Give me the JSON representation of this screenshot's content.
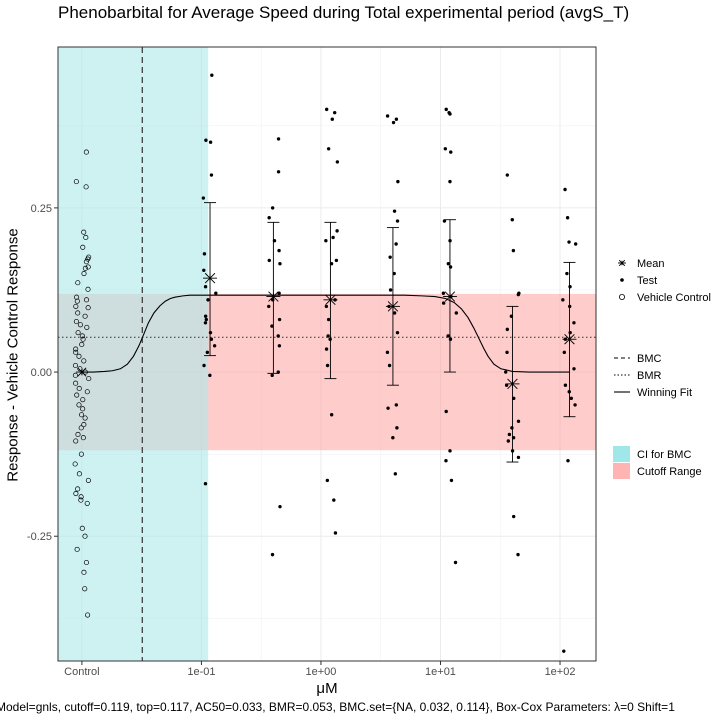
{
  "chart_data": {
    "type": "scatter",
    "title": "Phenobarbital for Average Speed during Total experimental period (avgS_T)",
    "xlabel": "μM",
    "ylabel": "Response - Vehicle Control Response",
    "caption": "Model=gnls, cutoff=0.119, top=0.117, AC50=0.033, BMR=0.053, BMC.set={NA, 0.032, 0.114}, Box-Cox Parameters: λ=0 Shift=1",
    "x_scale": "log10",
    "xlim": [
      0.00631,
      200
    ],
    "ylim": [
      -0.44,
      0.495
    ],
    "x_ticks": [
      {
        "label": "Control",
        "x": 0.01
      },
      {
        "label": "1e-01",
        "x": 0.1
      },
      {
        "label": "1e+00",
        "x": 1
      },
      {
        "label": "1e+01",
        "x": 10
      },
      {
        "label": "1e+02",
        "x": 100
      }
    ],
    "y_ticks": [
      {
        "label": "0.25",
        "y": 0.25
      },
      {
        "label": "0.00",
        "y": 0.0
      },
      {
        "label": "-0.25",
        "y": -0.25
      }
    ],
    "grid": true,
    "cutoff": 0.119,
    "bmr": 0.053,
    "bmc": 0.032,
    "bmc_ci": [
      0.00631,
      0.114
    ],
    "vehicle_control": {
      "x": 0.01,
      "values": [
        0.335,
        0.29,
        0.282,
        0.213,
        0.205,
        0.19,
        0.175,
        0.172,
        0.168,
        0.16,
        0.158,
        0.15,
        0.136,
        0.126,
        0.114,
        0.11,
        0.108,
        0.1,
        0.098,
        0.09,
        0.085,
        0.077,
        0.072,
        0.068,
        0.06,
        0.055,
        0.05,
        0.042,
        0.035,
        0.03,
        0.024,
        0.017,
        0.01,
        0.005,
        0.0,
        -0.005,
        -0.01,
        -0.017,
        -0.025,
        -0.03,
        -0.035,
        -0.042,
        -0.05,
        -0.056,
        -0.065,
        -0.07,
        -0.08,
        -0.085,
        -0.095,
        -0.1,
        -0.105,
        -0.125,
        -0.14,
        -0.155,
        -0.165,
        -0.178,
        -0.185,
        -0.19,
        -0.195,
        -0.2,
        -0.238,
        -0.25,
        -0.27,
        -0.29,
        -0.305,
        -0.33,
        -0.37
      ]
    },
    "test_groups": [
      {
        "x": 0.118,
        "mean": 0.143,
        "sd_low": 0.025,
        "sd_high": 0.258,
        "values": [
          0.452,
          0.353,
          0.35,
          0.3,
          0.265,
          0.18,
          0.155,
          0.13,
          0.12,
          0.11,
          0.085,
          0.08,
          0.075,
          0.06,
          0.05,
          0.04,
          0.03,
          0.01,
          -0.005,
          -0.17
        ]
      },
      {
        "x": 0.4,
        "mean": 0.115,
        "sd_low": -0.002,
        "sd_high": 0.228,
        "values": [
          0.355,
          0.305,
          0.25,
          0.235,
          0.2,
          0.185,
          0.17,
          0.165,
          0.12,
          0.11,
          0.1,
          0.08,
          0.07,
          0.055,
          0.04,
          0.0,
          -0.005,
          -0.205,
          -0.278
        ]
      },
      {
        "x": 1.2,
        "mean": 0.11,
        "sd_low": -0.01,
        "sd_high": 0.228,
        "values": [
          0.4,
          0.395,
          0.385,
          0.34,
          0.32,
          0.215,
          0.205,
          0.2,
          0.17,
          0.165,
          0.11,
          0.1,
          0.08,
          0.055,
          0.05,
          0.035,
          0.01,
          -0.065,
          -0.165,
          -0.195,
          -0.245
        ]
      },
      {
        "x": 4,
        "mean": 0.1,
        "sd_low": -0.02,
        "sd_high": 0.22,
        "values": [
          0.39,
          0.385,
          0.38,
          0.29,
          0.245,
          0.23,
          0.195,
          0.175,
          0.15,
          0.125,
          0.1,
          0.09,
          0.06,
          0.03,
          0.01,
          -0.05,
          -0.055,
          -0.085,
          -0.1,
          -0.155
        ]
      },
      {
        "x": 12,
        "mean": 0.115,
        "sd_low": 0.0,
        "sd_high": 0.232,
        "values": [
          0.4,
          0.395,
          0.393,
          0.34,
          0.335,
          0.29,
          0.23,
          0.2,
          0.165,
          0.16,
          0.12,
          0.115,
          0.105,
          0.09,
          0.055,
          0.05,
          -0.06,
          -0.12,
          -0.135,
          -0.165,
          -0.29
        ]
      },
      {
        "x": 40,
        "mean": -0.018,
        "sd_low": -0.137,
        "sd_high": 0.1,
        "values": [
          0.3,
          0.232,
          0.185,
          0.12,
          0.118,
          0.085,
          0.065,
          0.03,
          0.0,
          -0.02,
          -0.04,
          -0.075,
          -0.085,
          -0.095,
          -0.1,
          -0.105,
          -0.12,
          -0.13,
          -0.22,
          -0.278
        ]
      },
      {
        "x": 120,
        "mean": 0.05,
        "sd_low": -0.068,
        "sd_high": 0.167,
        "values": [
          0.278,
          0.235,
          0.198,
          0.195,
          0.15,
          0.13,
          0.11,
          0.1,
          0.075,
          0.06,
          0.05,
          0.03,
          0.005,
          -0.02,
          -0.03,
          -0.04,
          -0.05,
          -0.135,
          -0.425
        ]
      }
    ],
    "control_mean": 0.0,
    "fit_curve": {
      "x": [
        0.01,
        0.0125,
        0.0155,
        0.018,
        0.021,
        0.024,
        0.027,
        0.03,
        0.033,
        0.036,
        0.04,
        0.045,
        0.05,
        0.055,
        0.06,
        0.07,
        0.08,
        0.1,
        0.15,
        0.3,
        0.7,
        1.5,
        3,
        5,
        7,
        9,
        11,
        13,
        15,
        17,
        19,
        21,
        23,
        25,
        28,
        32,
        40,
        55,
        80,
        120
      ],
      "y": [
        0.0,
        0.0,
        0.001,
        0.002,
        0.005,
        0.012,
        0.024,
        0.04,
        0.058,
        0.075,
        0.09,
        0.101,
        0.108,
        0.112,
        0.114,
        0.116,
        0.117,
        0.117,
        0.117,
        0.117,
        0.117,
        0.117,
        0.117,
        0.117,
        0.116,
        0.115,
        0.112,
        0.106,
        0.096,
        0.083,
        0.067,
        0.051,
        0.036,
        0.024,
        0.012,
        0.005,
        0.001,
        0.0,
        0.0,
        0.0
      ]
    },
    "legend": {
      "points": [
        {
          "label": "Mean",
          "symbol": "asterisk"
        },
        {
          "label": "Test",
          "symbol": "filled-dot"
        },
        {
          "label": "Vehicle Control",
          "symbol": "open-circle"
        }
      ],
      "lines": [
        {
          "label": "BMC",
          "style": "dashed"
        },
        {
          "label": "BMR",
          "style": "dotted"
        },
        {
          "label": "Winning Fit",
          "style": "solid"
        }
      ],
      "fills": [
        {
          "label": "CI for BMC",
          "color": "#9fe7e8"
        },
        {
          "label": "Cutoff Range",
          "color": "#ffb3b3"
        }
      ],
      "position": "right"
    },
    "colors": {
      "ci_band": "#aee8ea",
      "cutoff_band": "#ff9a9a",
      "points": "#000000",
      "panel_border": "#333333",
      "grid": "#ebebeb"
    }
  }
}
